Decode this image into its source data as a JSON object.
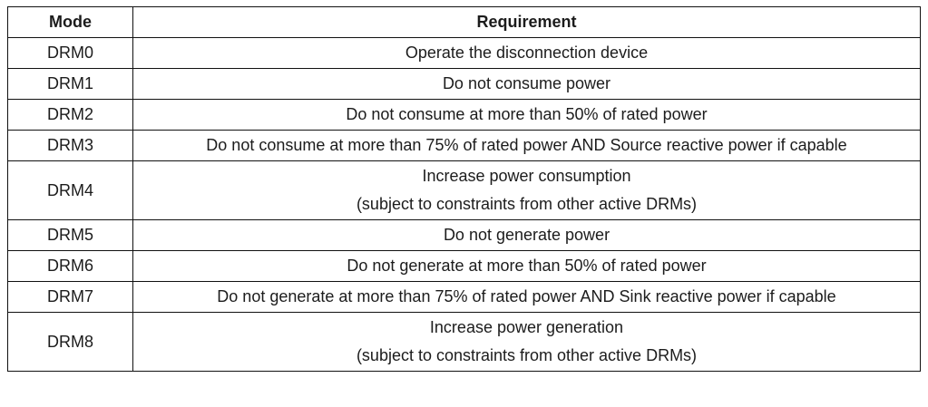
{
  "table": {
    "headers": {
      "mode": "Mode",
      "requirement": "Requirement"
    },
    "rows": [
      {
        "mode": "DRM0",
        "requirement": "Operate the disconnection device"
      },
      {
        "mode": "DRM1",
        "requirement": "Do not consume power"
      },
      {
        "mode": "DRM2",
        "requirement": "Do not consume at more than 50% of rated power"
      },
      {
        "mode": "DRM3",
        "requirement": "Do not consume at more than 75% of rated power AND Source reactive power if capable"
      },
      {
        "mode": "DRM4",
        "requirement": "Increase power consumption\n(subject to constraints from other active DRMs)"
      },
      {
        "mode": "DRM5",
        "requirement": "Do not generate power"
      },
      {
        "mode": "DRM6",
        "requirement": "Do not generate at more than 50% of rated power"
      },
      {
        "mode": "DRM7",
        "requirement": "Do not generate at more than 75% of rated power AND Sink reactive power if capable"
      },
      {
        "mode": "DRM8",
        "requirement": "Increase power generation\n(subject to constraints from other active DRMs)"
      }
    ],
    "colors": {
      "border": "#111111",
      "text": "#1c1c1c",
      "background": "#ffffff"
    }
  }
}
